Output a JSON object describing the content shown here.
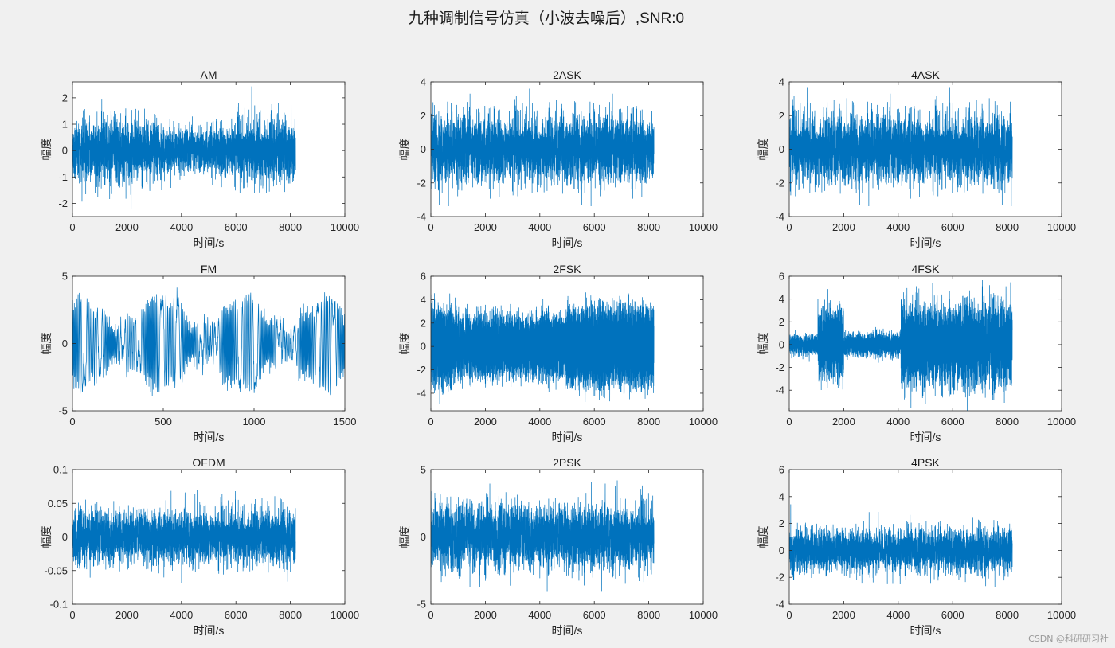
{
  "figure": {
    "title": "九种调制信号仿真（小波去噪后）,SNR:0",
    "line_color": "#0072bd",
    "axes_bg": "#ffffff",
    "fig_bg": "#f0f0f0"
  },
  "watermark": "CSDN @科研研习社",
  "chart_data": [
    {
      "type": "line",
      "title": "AM",
      "xlabel": "时间/s",
      "ylabel": "幅度",
      "xlim": [
        0,
        10000
      ],
      "ylim": [
        -2.5,
        2.6
      ],
      "xticks": [
        0,
        2000,
        4000,
        6000,
        8000,
        10000
      ],
      "yticks": [
        -2,
        -1,
        0,
        1,
        2
      ],
      "ytick_labels": [
        "-2",
        "-1",
        "0",
        "1",
        "2"
      ],
      "n": 8192,
      "signal": "am",
      "amplitude": 0.6,
      "peak": 2.5
    },
    {
      "type": "line",
      "title": "2ASK",
      "xlabel": "时间/s",
      "ylabel": "幅度",
      "xlim": [
        0,
        10000
      ],
      "ylim": [
        -4,
        4
      ],
      "xticks": [
        0,
        2000,
        4000,
        6000,
        8000,
        10000
      ],
      "yticks": [
        -4,
        -2,
        0,
        2,
        4
      ],
      "ytick_labels": [
        "-4",
        "-2",
        "0",
        "2",
        "4"
      ],
      "n": 8192,
      "signal": "noise",
      "amplitude": 1.0,
      "peak": 3.7
    },
    {
      "type": "line",
      "title": "4ASK",
      "xlabel": "时间/s",
      "ylabel": "幅度",
      "xlim": [
        0,
        10000
      ],
      "ylim": [
        -4,
        4
      ],
      "xticks": [
        0,
        2000,
        4000,
        6000,
        8000,
        10000
      ],
      "yticks": [
        -4,
        -2,
        0,
        2,
        4
      ],
      "ytick_labels": [
        "-4",
        "-2",
        "0",
        "2",
        "4"
      ],
      "n": 8192,
      "signal": "noise",
      "amplitude": 1.0,
      "peak": 3.8
    },
    {
      "type": "line",
      "title": "FM",
      "xlabel": "时间/s",
      "ylabel": "幅度",
      "xlim": [
        0,
        1500
      ],
      "ylim": [
        -5,
        5
      ],
      "xticks": [
        0,
        500,
        1000,
        1500
      ],
      "yticks": [
        -5,
        0,
        5
      ],
      "ytick_labels": [
        "-5",
        "0",
        "5"
      ],
      "n": 1500,
      "signal": "fm",
      "amplitude": 3.0,
      "peak": 4.8
    },
    {
      "type": "line",
      "title": "2FSK",
      "xlabel": "时间/s",
      "ylabel": "幅度",
      "xlim": [
        0,
        10000
      ],
      "ylim": [
        -5.5,
        6
      ],
      "xticks": [
        0,
        2000,
        4000,
        6000,
        8000,
        10000
      ],
      "yticks": [
        -4,
        -2,
        0,
        2,
        4,
        6
      ],
      "ytick_labels": [
        "-4",
        "-2",
        "0",
        "2",
        "4",
        "6"
      ],
      "n": 8192,
      "signal": "2fsk",
      "amplitude": 2.6,
      "peak": 5.9
    },
    {
      "type": "line",
      "title": "4FSK",
      "xlabel": "时间/s",
      "ylabel": "幅度",
      "xlim": [
        0,
        10000
      ],
      "ylim": [
        -5.8,
        6
      ],
      "xticks": [
        0,
        2000,
        4000,
        6000,
        8000,
        10000
      ],
      "yticks": [
        -4,
        -2,
        0,
        2,
        4,
        6
      ],
      "ytick_labels": [
        "-4",
        "-2",
        "0",
        "2",
        "4",
        "6"
      ],
      "n": 8192,
      "signal": "4fsk",
      "amplitude": 2.5,
      "peak": 5.9
    },
    {
      "type": "line",
      "title": "OFDM",
      "xlabel": "时间/s",
      "ylabel": "幅度",
      "xlim": [
        0,
        10000
      ],
      "ylim": [
        -0.1,
        0.1
      ],
      "xticks": [
        0,
        2000,
        4000,
        6000,
        8000,
        10000
      ],
      "yticks": [
        -0.1,
        -0.05,
        0,
        0.05,
        0.1
      ],
      "ytick_labels": [
        "-0.1",
        "-0.05",
        "0",
        "0.05",
        "0.1"
      ],
      "n": 8192,
      "signal": "noise",
      "amplitude": 0.02,
      "peak": 0.07
    },
    {
      "type": "line",
      "title": "2PSK",
      "xlabel": "时间/s",
      "ylabel": "幅度",
      "xlim": [
        0,
        10000
      ],
      "ylim": [
        -5,
        5
      ],
      "xticks": [
        0,
        2000,
        4000,
        6000,
        8000,
        10000
      ],
      "yticks": [
        -5,
        0,
        5
      ],
      "ytick_labels": [
        "-5",
        "0",
        "5"
      ],
      "n": 8192,
      "signal": "noise",
      "amplitude": 1.2,
      "peak": 4.2
    },
    {
      "type": "line",
      "title": "4PSK",
      "xlabel": "时间/s",
      "ylabel": "幅度",
      "xlim": [
        0,
        10000
      ],
      "ylim": [
        -4,
        6
      ],
      "xticks": [
        0,
        2000,
        4000,
        6000,
        8000,
        10000
      ],
      "yticks": [
        -4,
        -2,
        0,
        2,
        4,
        6
      ],
      "ytick_labels": [
        "-4",
        "-2",
        "0",
        "2",
        "4",
        "6"
      ],
      "n": 8192,
      "signal": "noise",
      "amplitude": 0.8,
      "peak": 4.6
    }
  ]
}
